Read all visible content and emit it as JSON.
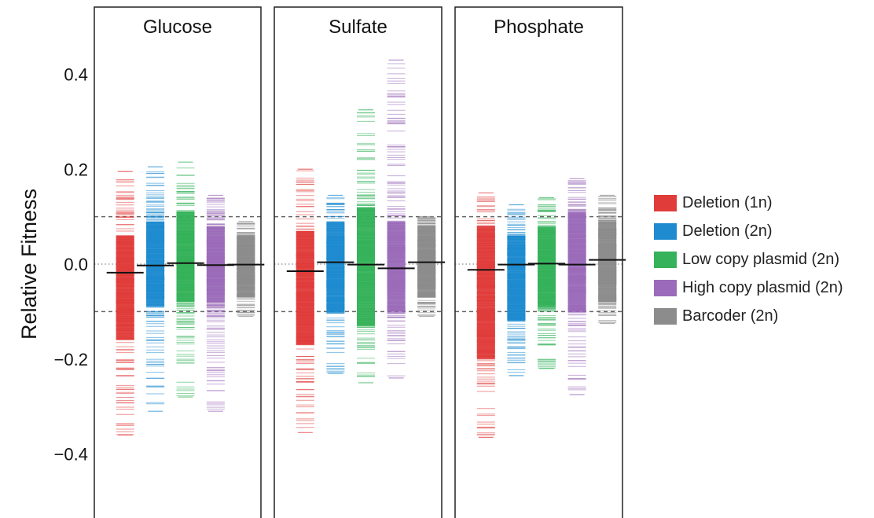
{
  "chart_data": {
    "type": "strip",
    "ylabel": "Relative Fitness",
    "ylim": [
      -0.52,
      0.54
    ],
    "yticks": [
      0.4,
      0.2,
      0.0,
      -0.2,
      -0.4
    ],
    "ytick_labels": [
      "0.4",
      "0.2",
      "0.0",
      "−0.2",
      "−0.4"
    ],
    "reference_lines": [
      {
        "y": 0.1,
        "style": "dashed"
      },
      {
        "y": -0.1,
        "style": "dashed"
      },
      {
        "y": 0.0,
        "style": "dotted"
      }
    ],
    "panels": [
      {
        "title": "Glucose",
        "groups": [
          {
            "series": "Deletion (1n)",
            "median": -0.018,
            "dense": [
              -0.16,
              0.06
            ],
            "min": -0.36,
            "max": 0.195
          },
          {
            "series": "Deletion (2n)",
            "median": -0.003,
            "dense": [
              -0.09,
              0.09
            ],
            "min": -0.31,
            "max": 0.205
          },
          {
            "series": "Low copy plasmid (2n)",
            "median": 0.002,
            "dense": [
              -0.08,
              0.11
            ],
            "min": -0.28,
            "max": 0.215
          },
          {
            "series": "High copy plasmid (2n)",
            "median": -0.002,
            "dense": [
              -0.08,
              0.08
            ],
            "min": -0.31,
            "max": 0.145
          },
          {
            "series": "Barcoder (2n)",
            "median": -0.001,
            "dense": [
              -0.07,
              0.06
            ],
            "min": -0.11,
            "max": 0.09
          }
        ]
      },
      {
        "title": "Sulfate",
        "groups": [
          {
            "series": "Deletion (1n)",
            "median": -0.015,
            "dense": [
              -0.17,
              0.07
            ],
            "min": -0.355,
            "max": 0.2
          },
          {
            "series": "Deletion (2n)",
            "median": 0.004,
            "dense": [
              -0.1,
              0.09
            ],
            "min": -0.23,
            "max": 0.145
          },
          {
            "series": "Low copy plasmid (2n)",
            "median": -0.001,
            "dense": [
              -0.13,
              0.12
            ],
            "min": -0.25,
            "max": 0.325
          },
          {
            "series": "High copy plasmid (2n)",
            "median": -0.009,
            "dense": [
              -0.1,
              0.09
            ],
            "min": -0.24,
            "max": 0.43
          },
          {
            "series": "Barcoder (2n)",
            "median": 0.004,
            "dense": [
              -0.07,
              0.08
            ],
            "min": -0.11,
            "max": 0.1
          }
        ]
      },
      {
        "title": "Phosphate",
        "groups": [
          {
            "series": "Deletion (1n)",
            "median": -0.012,
            "dense": [
              -0.2,
              0.08
            ],
            "min": -0.365,
            "max": 0.15
          },
          {
            "series": "Deletion (2n)",
            "median": -0.001,
            "dense": [
              -0.12,
              0.06
            ],
            "min": -0.235,
            "max": 0.125
          },
          {
            "series": "Low copy plasmid (2n)",
            "median": 0.001,
            "dense": [
              -0.09,
              0.08
            ],
            "min": -0.22,
            "max": 0.14
          },
          {
            "series": "High copy plasmid (2n)",
            "median": -0.001,
            "dense": [
              -0.1,
              0.11
            ],
            "min": -0.275,
            "max": 0.18
          },
          {
            "series": "Barcoder (2n)",
            "median": 0.009,
            "dense": [
              -0.08,
              0.09
            ],
            "min": -0.125,
            "max": 0.145
          }
        ]
      }
    ],
    "legend": {
      "placement": "right",
      "entries": [
        {
          "label": "Deletion (1n)",
          "color": "#e03c3a"
        },
        {
          "label": "Deletion (2n)",
          "color": "#1e8bd0"
        },
        {
          "label": "Low copy plasmid (2n)",
          "color": "#35b25a"
        },
        {
          "label": "High copy plasmid (2n)",
          "color": "#9b6bb9"
        },
        {
          "label": "Barcoder (2n)",
          "color": "#8c8c8c"
        }
      ]
    }
  }
}
